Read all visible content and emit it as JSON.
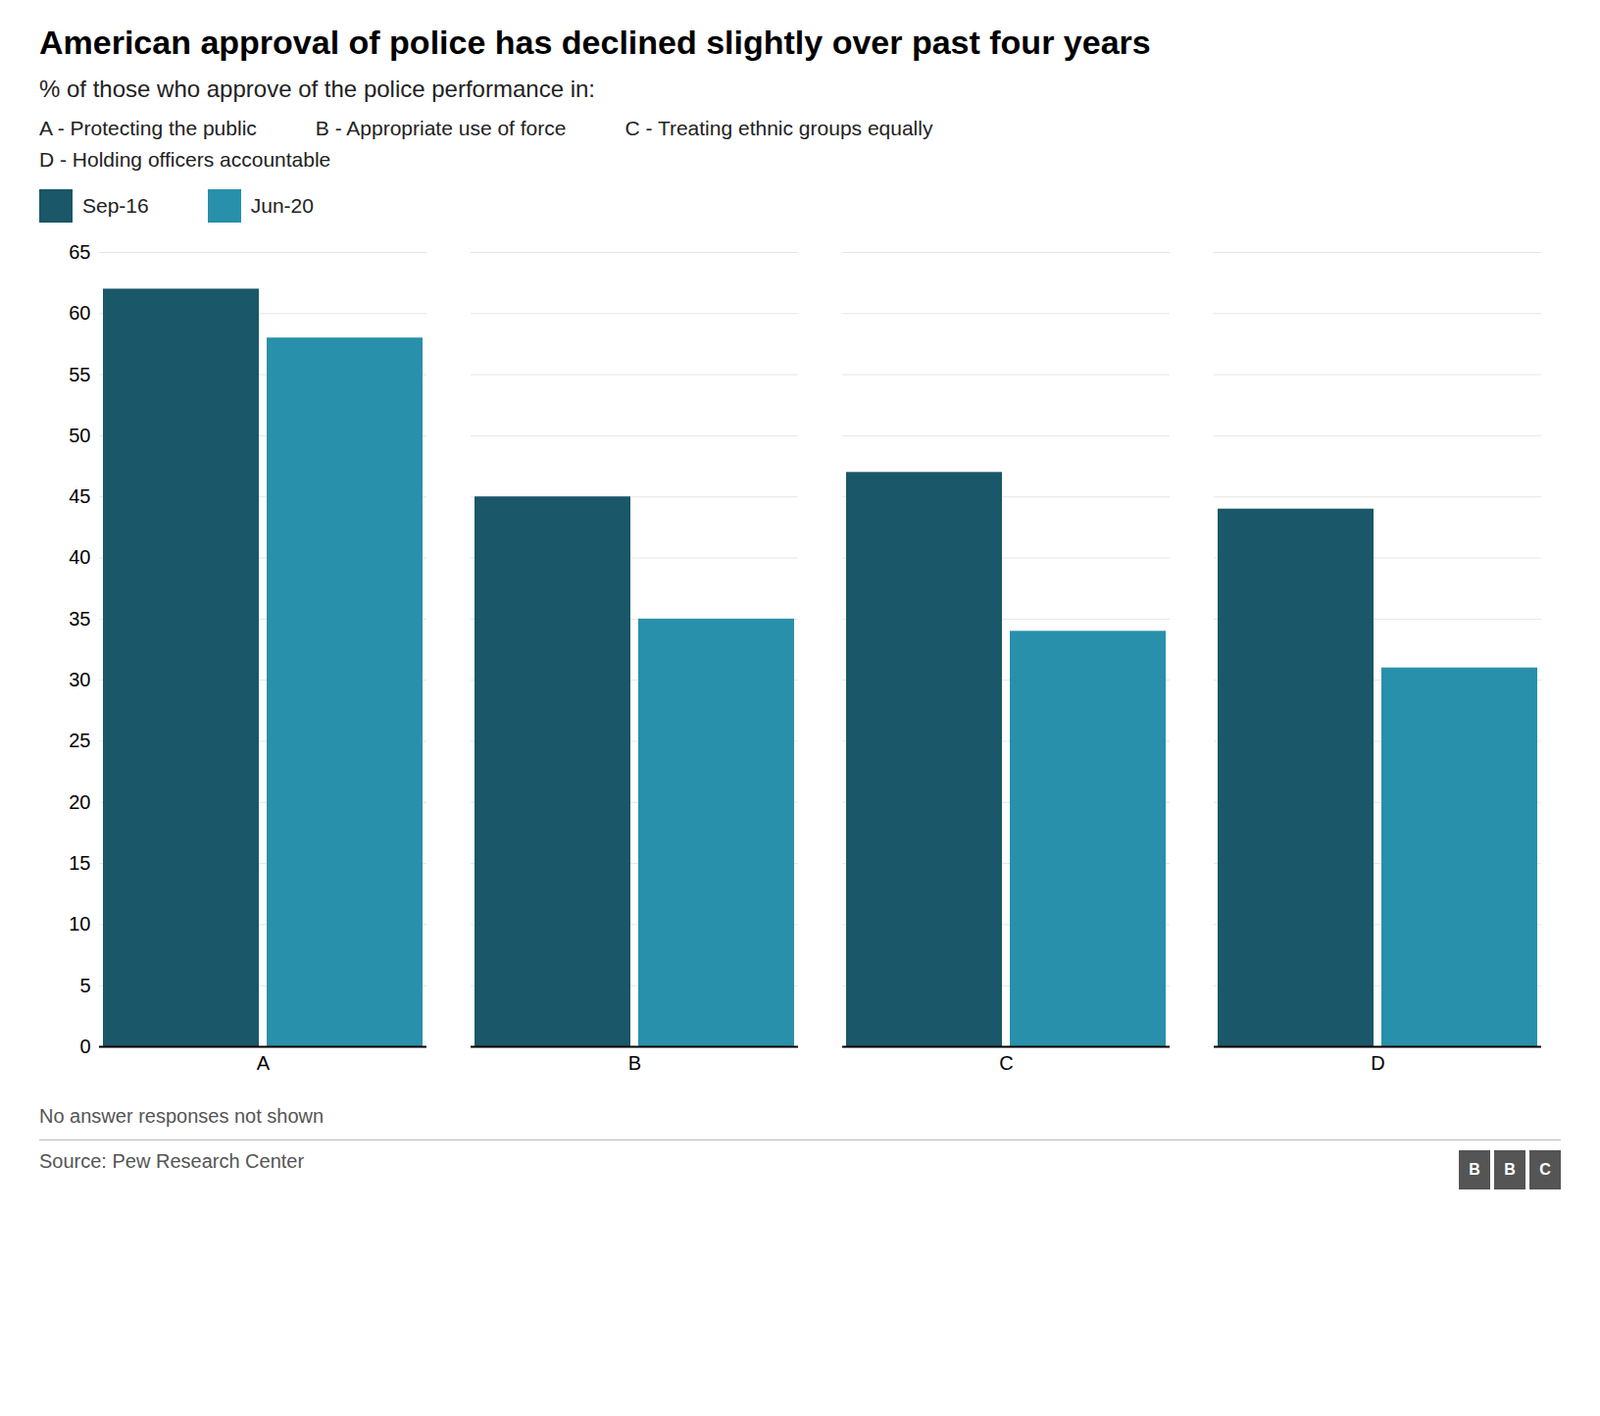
{
  "chart_data": {
    "type": "bar",
    "title": "American approval of police has declined slightly over past four years",
    "subtitle": "% of those who approve of the police performance in:",
    "annotations": [
      "A - Protecting the public",
      "B - Appropriate use of force",
      "C - Treating ethnic groups equally",
      "D - Holding officers accountable"
    ],
    "categories": [
      "A",
      "B",
      "C",
      "D"
    ],
    "series": [
      {
        "name": "Sep-16",
        "values": [
          62,
          45,
          47,
          44
        ],
        "color": "#1a5769"
      },
      {
        "name": "Jun-20",
        "values": [
          58,
          35,
          34,
          31
        ],
        "color": "#2890aa"
      }
    ],
    "ylim": [
      0,
      65
    ],
    "yticks": [
      0,
      5,
      10,
      15,
      20,
      25,
      30,
      35,
      40,
      45,
      50,
      55,
      60,
      65
    ],
    "grid": true,
    "legend": "top",
    "note": "No answer responses not shown",
    "source": "Source: Pew Research Center",
    "logo": "BBC"
  }
}
